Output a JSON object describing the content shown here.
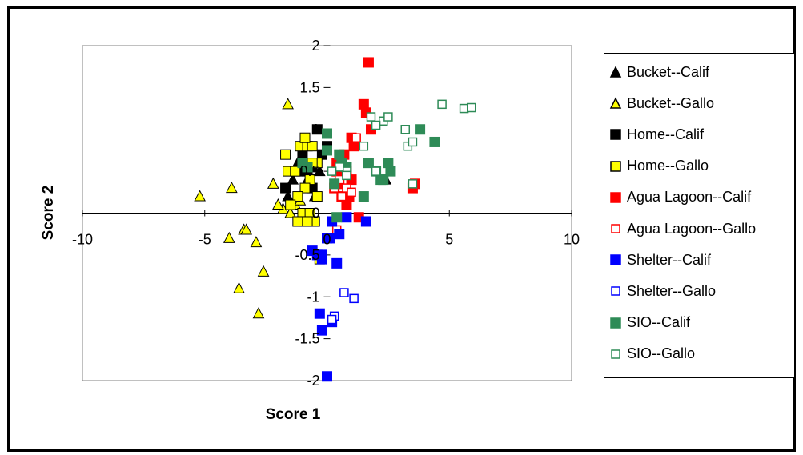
{
  "chart_data": {
    "type": "scatter",
    "xlabel": "Score 1",
    "ylabel": "Score 2",
    "xlim": [
      -10,
      10
    ],
    "ylim": [
      -2,
      2
    ],
    "x_ticks": [
      "-10",
      "-5",
      "0",
      "5",
      "10"
    ],
    "y_ticks": [
      "2",
      "1.5",
      "1",
      "0.5",
      "0",
      "-0.5",
      "-1",
      "-1.5",
      "-2"
    ],
    "grid": false,
    "legend_position": "right",
    "series": [
      {
        "name": "Bucket--Calif",
        "marker": "triangle",
        "filled": true,
        "color": "#000000",
        "fill": "#000000",
        "points": [
          [
            -1.6,
            0.2
          ],
          [
            -1.2,
            0.6
          ],
          [
            -0.8,
            0.4
          ],
          [
            -0.5,
            0.2
          ],
          [
            -1.4,
            0.4
          ],
          [
            2.4,
            0.4
          ],
          [
            -0.3,
            0.5
          ],
          [
            -0.9,
            0.8
          ]
        ]
      },
      {
        "name": "Bucket--Gallo",
        "marker": "triangle",
        "filled": true,
        "color": "#000000",
        "fill": "#FFFF00",
        "points": [
          [
            -5.2,
            0.2
          ],
          [
            -3.9,
            0.3
          ],
          [
            -4.0,
            -0.3
          ],
          [
            -3.4,
            -0.2
          ],
          [
            -3.3,
            -0.2
          ],
          [
            -2.9,
            -0.35
          ],
          [
            -3.6,
            -0.9
          ],
          [
            -2.6,
            -0.7
          ],
          [
            -2.8,
            -1.2
          ],
          [
            -1.6,
            1.3
          ],
          [
            -2.2,
            0.35
          ],
          [
            -1.8,
            0.05
          ],
          [
            -1.5,
            0.0
          ],
          [
            -2.0,
            0.1
          ],
          [
            -1.3,
            0.1
          ],
          [
            -0.7,
            0.3
          ],
          [
            -1.1,
            0.15
          ]
        ]
      },
      {
        "name": "Home--Calif",
        "marker": "square",
        "filled": true,
        "color": "#000000",
        "fill": "#000000",
        "points": [
          [
            -0.8,
            0.5
          ],
          [
            -0.6,
            0.3
          ],
          [
            -1.0,
            0.7
          ],
          [
            -0.2,
            0.7
          ],
          [
            -0.4,
            1.0
          ],
          [
            -1.7,
            0.3
          ],
          [
            -1.2,
            0.5
          ],
          [
            -0.9,
            0.6
          ],
          [
            0.0,
            0.8
          ],
          [
            -0.6,
            0.55
          ]
        ]
      },
      {
        "name": "Home--Gallo",
        "marker": "square",
        "filled": true,
        "color": "#000000",
        "fill": "#FFFF00",
        "points": [
          [
            -1.6,
            0.5
          ],
          [
            -1.3,
            0.5
          ],
          [
            -1.1,
            0.8
          ],
          [
            -0.8,
            0.8
          ],
          [
            -0.6,
            0.8
          ],
          [
            -0.4,
            0.6
          ],
          [
            -0.7,
            0.4
          ],
          [
            -0.9,
            0.3
          ],
          [
            -1.2,
            0.2
          ],
          [
            -1.5,
            0.1
          ],
          [
            -1.0,
            0.0
          ],
          [
            -0.7,
            0.0
          ],
          [
            -0.5,
            -0.1
          ],
          [
            -0.9,
            -0.1
          ],
          [
            -0.4,
            0.2
          ],
          [
            -1.7,
            0.7
          ],
          [
            -0.9,
            0.9
          ],
          [
            -0.6,
            0.6
          ],
          [
            -1.2,
            -0.1
          ],
          [
            -0.8,
            -0.1
          ],
          [
            -0.3,
            -0.55
          ]
        ]
      },
      {
        "name": "Agua Lagoon--Calif",
        "marker": "square",
        "filled": true,
        "color": "#FF0000",
        "fill": "#FF0000",
        "points": [
          [
            1.7,
            1.8
          ],
          [
            1.5,
            1.3
          ],
          [
            1.6,
            1.2
          ],
          [
            1.0,
            0.9
          ],
          [
            1.8,
            1.0
          ],
          [
            0.4,
            0.6
          ],
          [
            0.6,
            0.5
          ],
          [
            0.8,
            0.5
          ],
          [
            1.0,
            0.4
          ],
          [
            0.6,
            0.2
          ],
          [
            0.8,
            0.1
          ],
          [
            1.3,
            -0.05
          ],
          [
            0.9,
            0.2
          ],
          [
            0.4,
            0.5
          ],
          [
            0.7,
            0.7
          ],
          [
            1.1,
            0.8
          ],
          [
            3.5,
            0.3
          ],
          [
            3.6,
            0.35
          ],
          [
            0.3,
            0.3
          ],
          [
            0.5,
            0.35
          ]
        ]
      },
      {
        "name": "Agua Lagoon--Gallo",
        "marker": "square",
        "filled": false,
        "color": "#FF0000",
        "fill": "#FFFFFF",
        "points": [
          [
            1.2,
            0.9
          ],
          [
            0.8,
            0.3
          ],
          [
            0.6,
            0.2
          ],
          [
            1.0,
            0.25
          ],
          [
            0.3,
            0.3
          ],
          [
            0.5,
            0.4
          ],
          [
            0.4,
            -0.2
          ]
        ]
      },
      {
        "name": "Shelter--Calif",
        "marker": "square",
        "filled": true,
        "color": "#0000FF",
        "fill": "#0000FF",
        "points": [
          [
            0.0,
            -0.3
          ],
          [
            -0.2,
            -0.5
          ],
          [
            -0.4,
            -0.5
          ],
          [
            0.1,
            -0.3
          ],
          [
            0.5,
            -0.25
          ],
          [
            0.8,
            -0.05
          ],
          [
            1.6,
            -0.1
          ],
          [
            0.4,
            -0.6
          ],
          [
            -0.3,
            -1.2
          ],
          [
            0.2,
            -1.3
          ],
          [
            -0.2,
            -1.4
          ],
          [
            0.0,
            -1.95
          ],
          [
            -0.2,
            -0.55
          ],
          [
            -0.6,
            -0.45
          ],
          [
            0.2,
            -0.1
          ]
        ]
      },
      {
        "name": "Shelter--Gallo",
        "marker": "square",
        "filled": false,
        "color": "#0000FF",
        "fill": "#FFFFFF",
        "points": [
          [
            0.7,
            -0.95
          ],
          [
            1.1,
            -1.02
          ],
          [
            0.3,
            -1.23
          ],
          [
            0.2,
            -1.27
          ]
        ]
      },
      {
        "name": "SIO--Calif",
        "marker": "square",
        "filled": true,
        "color": "#2E8B57",
        "fill": "#2E8B57",
        "points": [
          [
            0.0,
            0.95
          ],
          [
            0.0,
            0.75
          ],
          [
            0.5,
            0.7
          ],
          [
            0.6,
            0.6
          ],
          [
            1.7,
            0.6
          ],
          [
            2.6,
            0.5
          ],
          [
            2.5,
            0.6
          ],
          [
            0.4,
            -0.05
          ],
          [
            1.5,
            0.2
          ],
          [
            2.0,
            0.5
          ],
          [
            2.3,
            0.4
          ],
          [
            2.2,
            0.4
          ],
          [
            3.8,
            1.0
          ],
          [
            4.4,
            0.85
          ],
          [
            0.8,
            0.55
          ],
          [
            -0.8,
            0.55
          ],
          [
            0.3,
            0.35
          ],
          [
            -1.0,
            0.6
          ]
        ]
      },
      {
        "name": "SIO--Gallo",
        "marker": "square",
        "filled": false,
        "color": "#2E8B57",
        "fill": "#FFFFFF",
        "points": [
          [
            4.7,
            1.3
          ],
          [
            5.6,
            1.25
          ],
          [
            5.9,
            1.26
          ],
          [
            1.8,
            1.15
          ],
          [
            2.3,
            1.1
          ],
          [
            2.5,
            1.15
          ],
          [
            3.2,
            1.0
          ],
          [
            1.5,
            0.8
          ],
          [
            2.0,
            1.05
          ],
          [
            3.3,
            0.8
          ],
          [
            3.5,
            0.85
          ],
          [
            0.8,
            0.5
          ],
          [
            0.8,
            0.45
          ],
          [
            0.5,
            0.55
          ],
          [
            2.0,
            0.5
          ],
          [
            3.5,
            0.35
          ],
          [
            0.2,
            0.5
          ]
        ]
      }
    ]
  },
  "legend": {
    "items": [
      {
        "label": "Bucket--Calif",
        "marker": "triangle",
        "stroke": "#000000",
        "fill": "#000000"
      },
      {
        "label": "Bucket--Gallo",
        "marker": "triangle",
        "stroke": "#000000",
        "fill": "#FFFF00"
      },
      {
        "label": "Home--Calif",
        "marker": "square",
        "stroke": "#000000",
        "fill": "#000000"
      },
      {
        "label": "Home--Gallo",
        "marker": "square",
        "stroke": "#000000",
        "fill": "#FFFF00"
      },
      {
        "label": "Agua Lagoon--Calif",
        "marker": "square",
        "stroke": "#FF0000",
        "fill": "#FF0000"
      },
      {
        "label": "Agua Lagoon--Gallo",
        "marker": "square",
        "stroke": "#FF0000",
        "fill": "#FFFFFF"
      },
      {
        "label": "Shelter--Calif",
        "marker": "square",
        "stroke": "#0000FF",
        "fill": "#0000FF"
      },
      {
        "label": "Shelter--Gallo",
        "marker": "square",
        "stroke": "#0000FF",
        "fill": "#FFFFFF"
      },
      {
        "label": "SIO--Calif",
        "marker": "square",
        "stroke": "#2E8B57",
        "fill": "#2E8B57"
      },
      {
        "label": "SIO--Gallo",
        "marker": "square",
        "stroke": "#2E8B57",
        "fill": "#FFFFFF"
      }
    ]
  }
}
